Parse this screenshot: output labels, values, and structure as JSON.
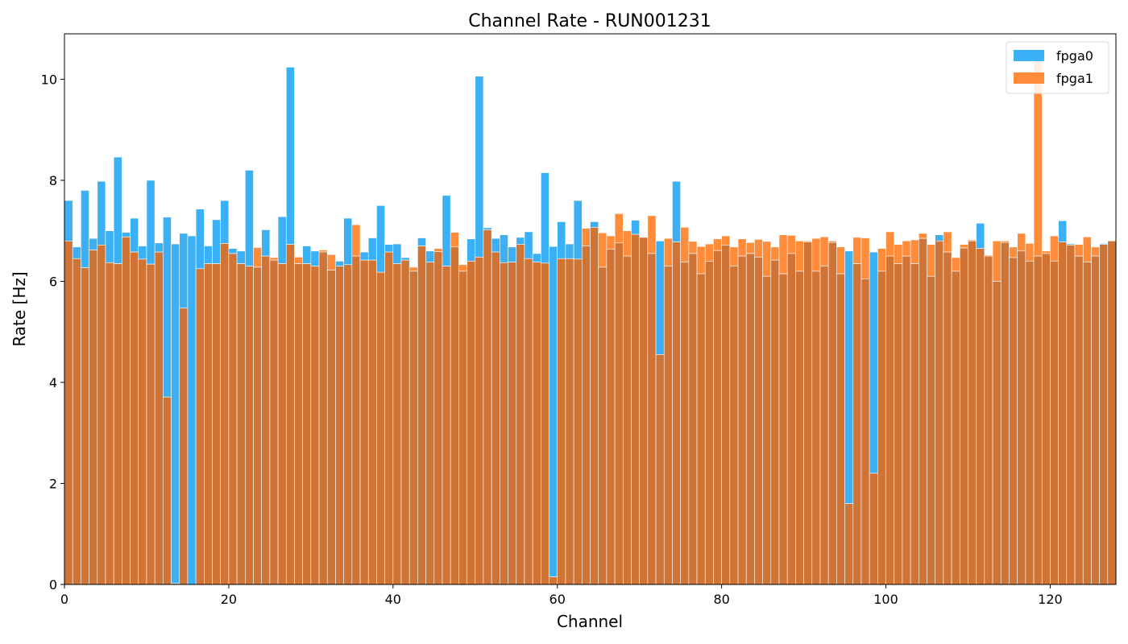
{
  "chart_data": {
    "type": "bar",
    "title": "Channel Rate - RUN001231",
    "xlabel": "Channel",
    "ylabel": "Rate [Hz]",
    "xlim": [
      0,
      128
    ],
    "ylim": [
      0,
      10.9
    ],
    "x_ticks": [
      0,
      20,
      40,
      60,
      80,
      100,
      120
    ],
    "y_ticks": [
      0,
      2,
      4,
      6,
      8,
      10
    ],
    "grid": false,
    "legend_position": "top-right",
    "categories": [
      0,
      1,
      2,
      3,
      4,
      5,
      6,
      7,
      8,
      9,
      10,
      11,
      12,
      13,
      14,
      15,
      16,
      17,
      18,
      19,
      20,
      21,
      22,
      23,
      24,
      25,
      26,
      27,
      28,
      29,
      30,
      31,
      32,
      33,
      34,
      35,
      36,
      37,
      38,
      39,
      40,
      41,
      42,
      43,
      44,
      45,
      46,
      47,
      48,
      49,
      50,
      51,
      52,
      53,
      54,
      55,
      56,
      57,
      58,
      59,
      60,
      61,
      62,
      63,
      64,
      65,
      66,
      67,
      68,
      69,
      70,
      71,
      72,
      73,
      74,
      75,
      76,
      77,
      78,
      79,
      80,
      81,
      82,
      83,
      84,
      85,
      86,
      87,
      88,
      89,
      90,
      91,
      92,
      93,
      94,
      95,
      96,
      97,
      98,
      99,
      100,
      101,
      102,
      103,
      104,
      105,
      106,
      107,
      108,
      109,
      110,
      111,
      112,
      113,
      114,
      115,
      116,
      117,
      118,
      119,
      120,
      121,
      122,
      123,
      124,
      125,
      126,
      127
    ],
    "series": [
      {
        "name": "fpga0",
        "color": "#3cb0f5",
        "values": [
          7.6,
          6.68,
          7.8,
          6.85,
          7.98,
          7.0,
          8.46,
          6.97,
          7.25,
          6.7,
          8.0,
          6.76,
          7.27,
          6.74,
          6.95,
          6.9,
          7.43,
          6.7,
          7.22,
          7.6,
          6.65,
          6.6,
          8.2,
          6.28,
          7.02,
          6.42,
          7.28,
          10.24,
          6.35,
          6.7,
          6.6,
          6.58,
          6.22,
          6.4,
          7.25,
          6.5,
          6.58,
          6.86,
          7.5,
          6.73,
          6.74,
          6.47,
          6.2,
          6.86,
          6.6,
          6.59,
          7.7,
          6.68,
          6.2,
          6.84,
          10.06,
          7.06,
          6.85,
          6.92,
          6.68,
          6.87,
          6.98,
          6.55,
          8.15,
          6.69,
          7.18,
          6.74,
          7.6,
          6.7,
          7.18,
          6.28,
          6.64,
          6.76,
          6.5,
          7.21,
          6.88,
          6.55,
          6.8,
          6.3,
          7.98,
          6.38,
          6.55,
          6.15,
          6.4,
          6.61,
          6.72,
          6.3,
          6.5,
          6.55,
          6.48,
          6.1,
          6.42,
          6.15,
          6.55,
          6.2,
          6.78,
          6.2,
          6.3,
          6.77,
          6.15,
          6.6,
          6.35,
          6.05,
          6.58,
          6.2,
          6.5,
          6.35,
          6.5,
          6.35,
          6.85,
          6.1,
          6.92,
          6.58,
          6.2,
          6.66,
          6.8,
          7.15,
          6.5,
          6.0,
          6.77,
          6.47,
          6.6,
          6.4,
          6.5,
          6.55,
          6.4,
          7.2,
          6.74,
          6.5,
          6.38,
          6.5,
          6.75,
          6.8
        ]
      },
      {
        "name": "fpga1",
        "color": "#ff8c3a",
        "values": [
          6.8,
          6.45,
          6.27,
          6.62,
          6.72,
          6.37,
          6.35,
          6.88,
          6.58,
          6.44,
          6.34,
          6.58,
          3.71,
          0.02,
          5.47,
          0.0,
          6.25,
          6.35,
          6.35,
          6.75,
          6.55,
          6.35,
          6.3,
          6.67,
          6.5,
          6.47,
          6.35,
          6.73,
          6.48,
          6.35,
          6.3,
          6.62,
          6.53,
          6.3,
          6.33,
          7.12,
          6.42,
          6.42,
          6.18,
          6.58,
          6.35,
          6.42,
          6.28,
          6.7,
          6.38,
          6.65,
          6.3,
          6.97,
          6.33,
          6.4,
          6.48,
          7.02,
          6.58,
          6.37,
          6.38,
          6.73,
          6.45,
          6.38,
          6.36,
          0.15,
          6.45,
          6.45,
          6.44,
          7.05,
          7.07,
          6.96,
          6.9,
          7.34,
          7.0,
          6.93,
          6.87,
          7.3,
          4.55,
          6.85,
          6.78,
          7.07,
          6.79,
          6.69,
          6.74,
          6.84,
          6.9,
          6.68,
          6.84,
          6.77,
          6.83,
          6.79,
          6.68,
          6.92,
          6.91,
          6.8,
          6.8,
          6.85,
          6.88,
          6.8,
          6.68,
          1.6,
          6.87,
          6.86,
          2.2,
          6.65,
          6.98,
          6.73,
          6.8,
          6.82,
          6.95,
          6.73,
          6.8,
          6.98,
          6.47,
          6.73,
          6.82,
          6.65,
          6.52,
          6.8,
          6.8,
          6.68,
          6.95,
          6.75,
          10.38,
          6.6,
          6.9,
          6.78,
          6.72,
          6.73,
          6.88,
          6.68,
          6.73,
          6.8
        ]
      }
    ]
  }
}
